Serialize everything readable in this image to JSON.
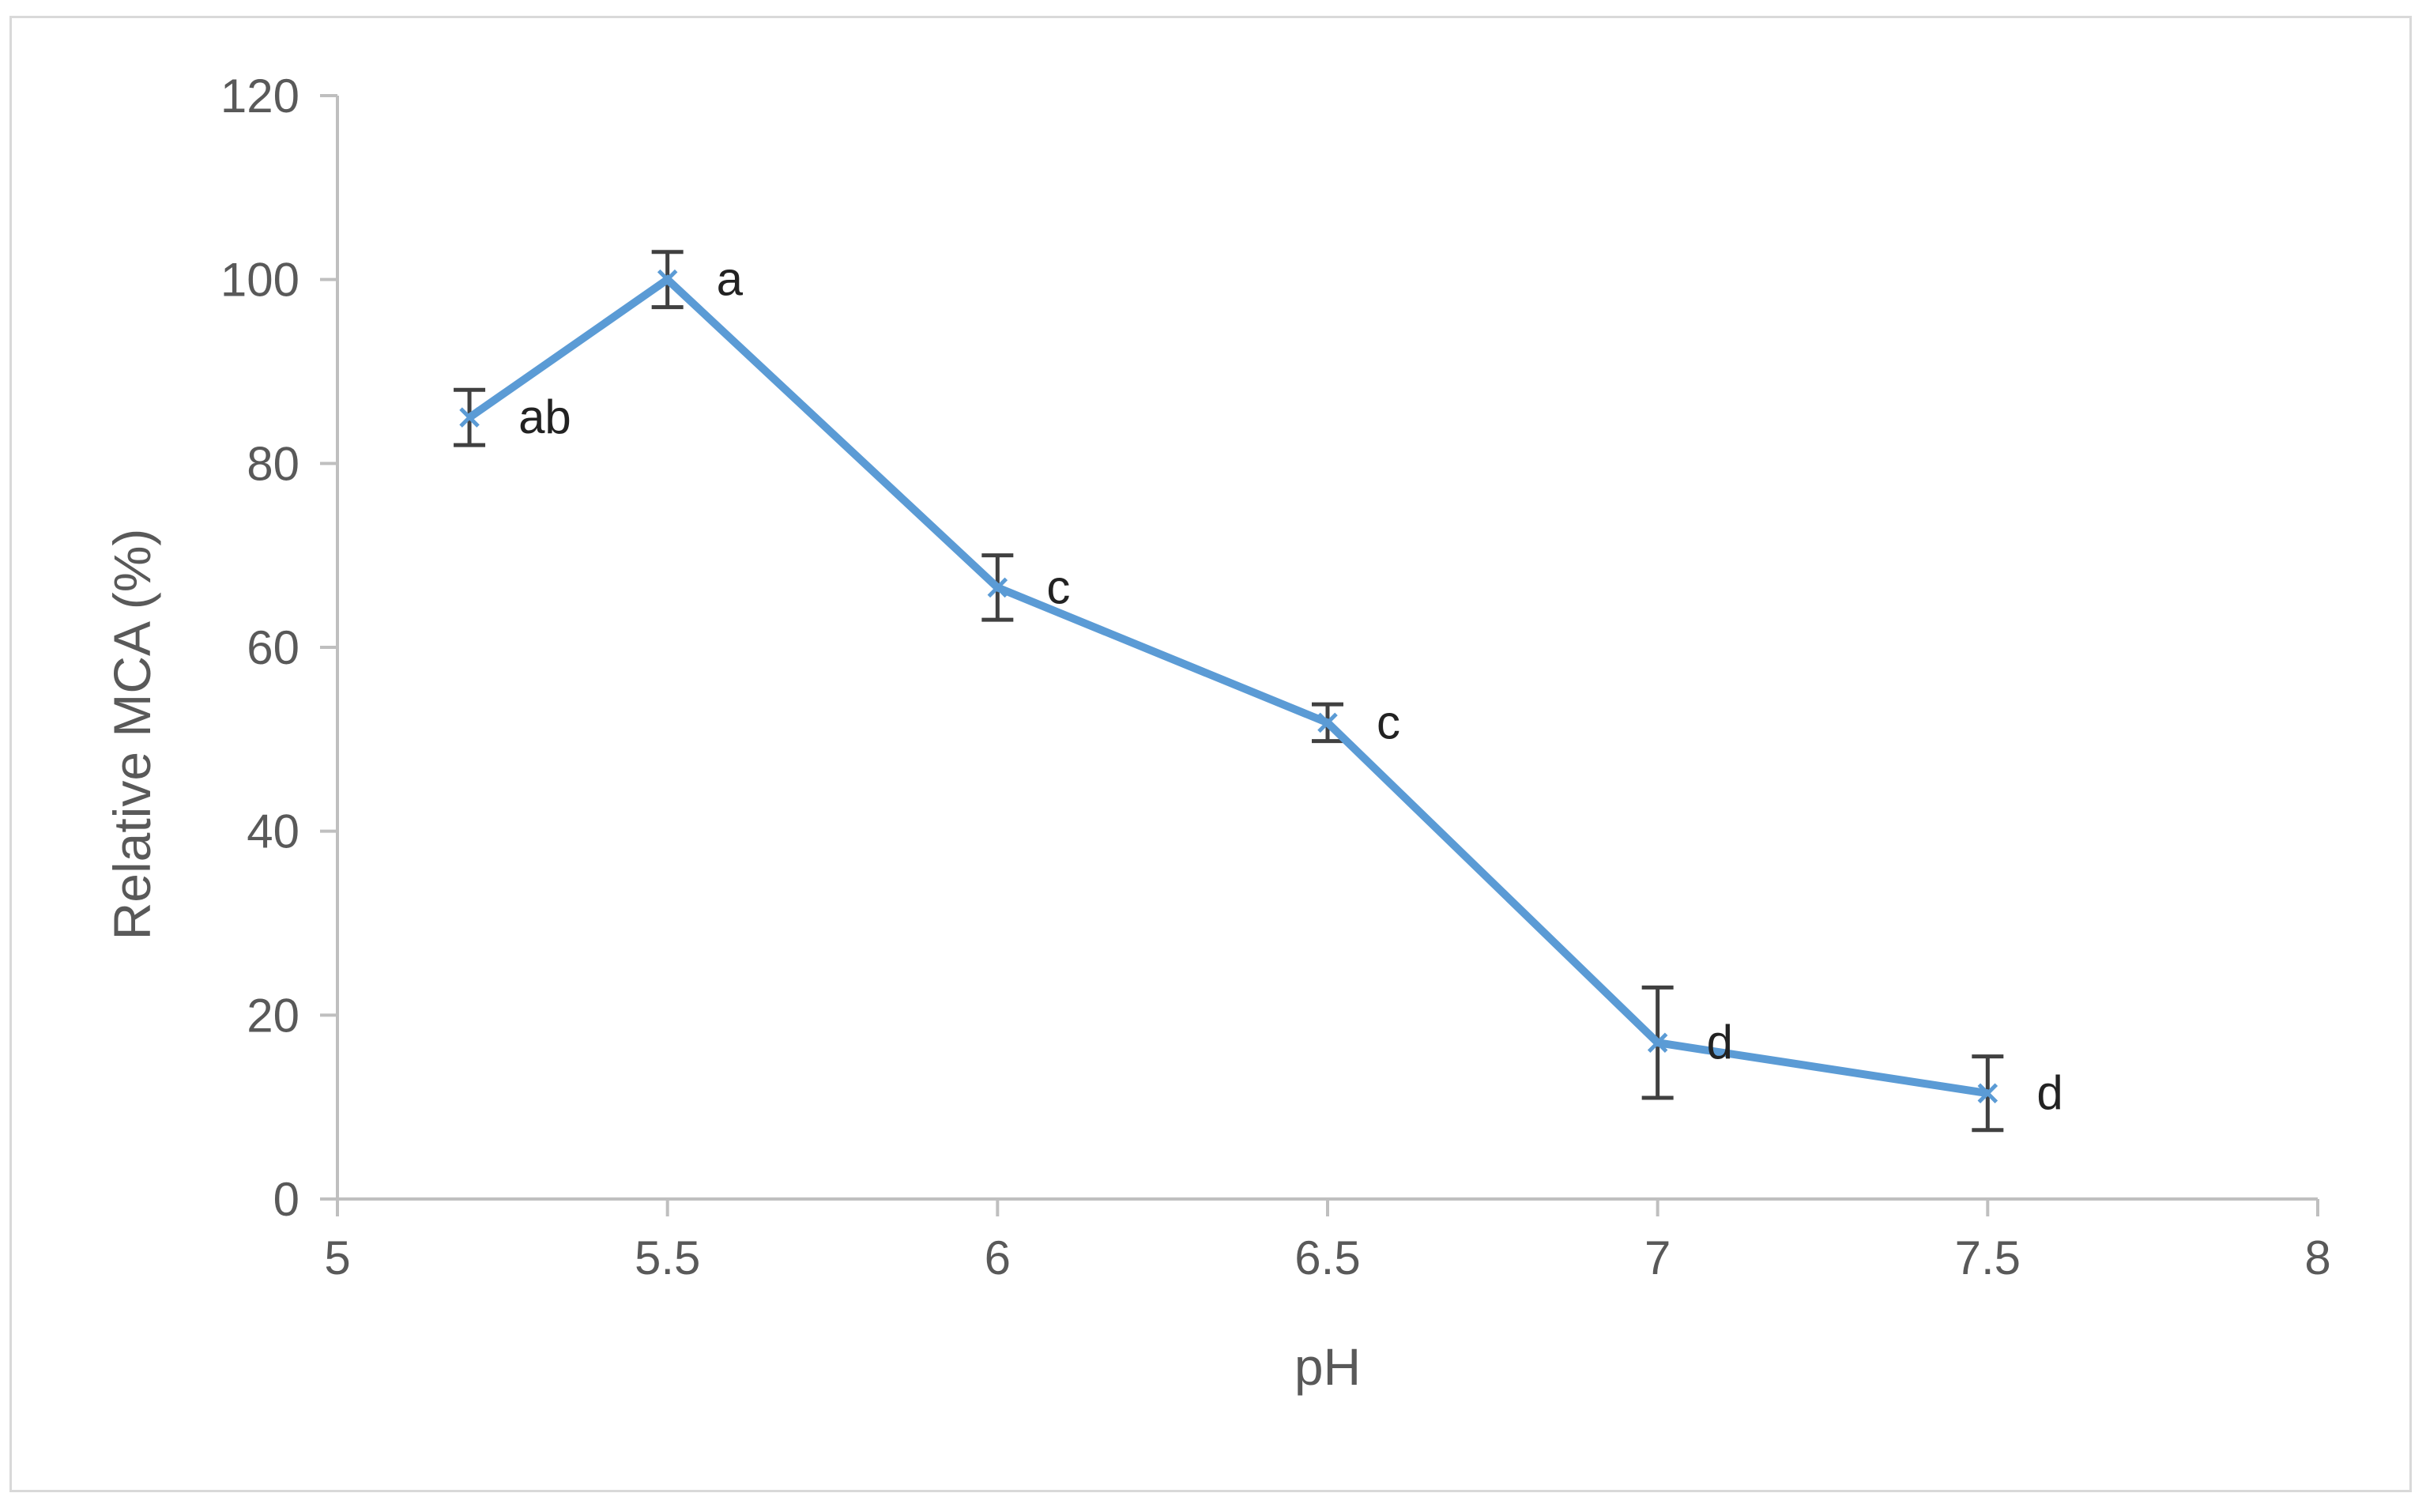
{
  "chart_data": {
    "type": "line",
    "title": "",
    "xlabel": "pH",
    "ylabel": "Relative  MCA (%)",
    "xlim": [
      5,
      8
    ],
    "ylim": [
      0,
      120
    ],
    "x_ticks": [
      5,
      5.5,
      6,
      6.5,
      7,
      7.5,
      8
    ],
    "x_tick_labels": [
      "5",
      "5.5",
      "6",
      "6.5",
      "7",
      "7.5",
      "8"
    ],
    "y_ticks": [
      0,
      20,
      40,
      60,
      80,
      100,
      120
    ],
    "y_tick_labels": [
      "0",
      "20",
      "40",
      "60",
      "80",
      "100",
      "120"
    ],
    "grid": false,
    "legend": "none",
    "series": [
      {
        "color": "#5b9bd5",
        "marker": "x",
        "x": [
          5.2,
          5.5,
          6,
          6.5,
          7,
          7.5
        ],
        "y": [
          85,
          100,
          66.5,
          51.8,
          17,
          11.5
        ],
        "error": [
          3,
          3,
          3.5,
          2,
          6,
          4
        ],
        "point_labels": [
          "ab",
          "a",
          "c",
          "c",
          "d",
          "d"
        ]
      }
    ]
  }
}
